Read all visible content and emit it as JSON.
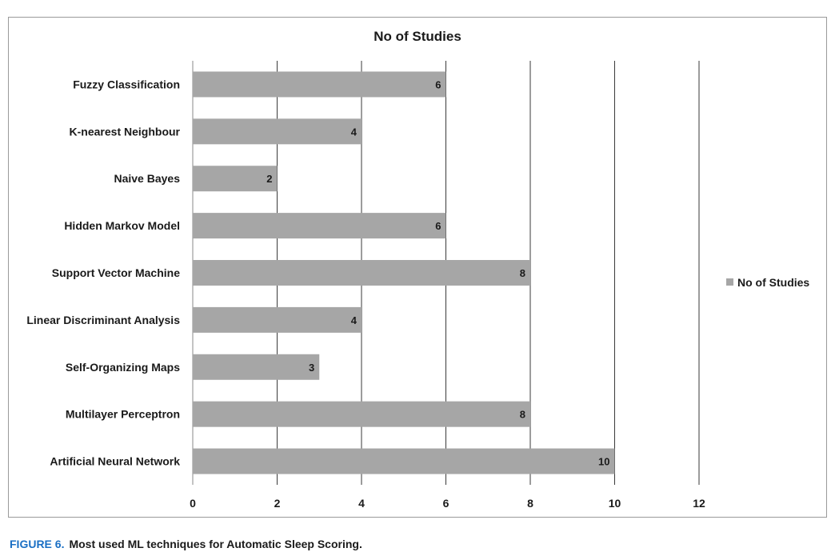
{
  "chart_data": {
    "type": "bar",
    "orientation": "horizontal",
    "title": "No of Studies",
    "categories": [
      "Fuzzy Classification",
      "K-nearest Neighbour",
      "Naive Bayes",
      "Hidden Markov Model",
      "Support Vector Machine",
      "Linear Discriminant Analysis",
      "Self-Organizing Maps",
      "Multilayer Perceptron",
      "Artificial Neural Network"
    ],
    "series": [
      {
        "name": "No of Studies",
        "values": [
          6,
          4,
          2,
          6,
          8,
          4,
          3,
          8,
          10
        ]
      }
    ],
    "xlim": [
      0,
      12
    ],
    "x_ticks": [
      0,
      2,
      4,
      6,
      8,
      10,
      12
    ],
    "data_labels": true,
    "grid": true,
    "legend_position": "right",
    "bar_color": "#a6a6a6"
  },
  "caption": {
    "label": "FIGURE 6.",
    "text": "Most used ML techniques for Automatic Sleep Scoring."
  }
}
